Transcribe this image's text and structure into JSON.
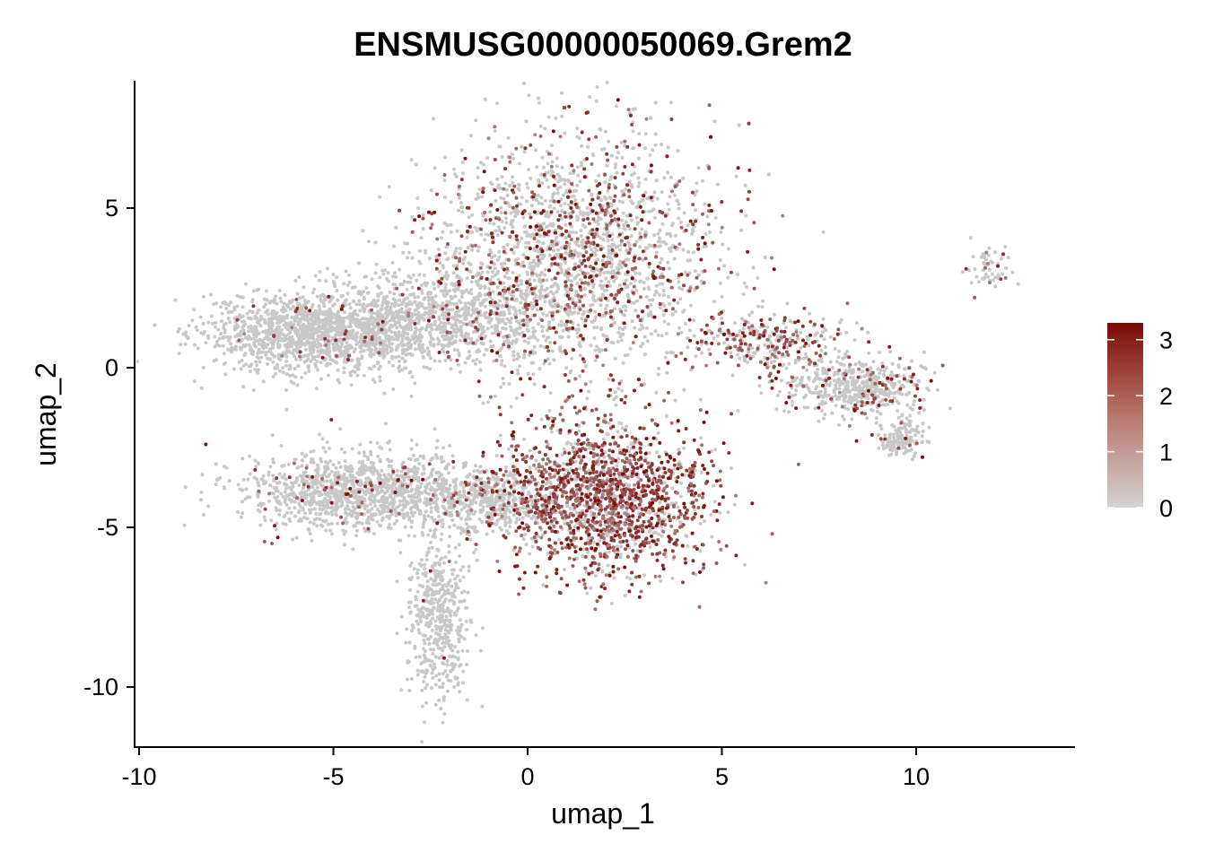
{
  "chart_data": {
    "type": "scatter",
    "title": "ENSMUSG00000050069.Grem2",
    "xlabel": "umap_1",
    "ylabel": "umap_2",
    "xlim": [
      -10,
      14
    ],
    "ylim": [
      -12,
      9
    ],
    "x_ticks": [
      -10,
      -5,
      0,
      5,
      10
    ],
    "x_tick_labels": [
      "-10",
      "-5",
      "0",
      "5",
      "10"
    ],
    "y_ticks": [
      -10,
      -5,
      0,
      5
    ],
    "y_tick_labels": [
      "-10",
      "-5",
      "0",
      "5"
    ],
    "grid": false,
    "legend": {
      "type": "colorbar",
      "placement": "right",
      "min": 0,
      "max": 3.3,
      "ticks": [
        0,
        1,
        2,
        3
      ],
      "tick_labels": [
        "0",
        "1",
        "2",
        "3"
      ],
      "low_color": "#d3d3d3",
      "high_color": "#7a0a05"
    },
    "point_color_low": "#c8c8c8",
    "point_color_high": "#7a0a05",
    "clusters": [
      {
        "cx": -5.4,
        "cy": 1.1,
        "sx": 1.4,
        "sy": 0.6,
        "n": 1500,
        "expr_frac": 0.02
      },
      {
        "cx": -2.0,
        "cy": 1.6,
        "sx": 1.6,
        "sy": 0.8,
        "n": 900,
        "expr_frac": 0.03
      },
      {
        "cx": 1.2,
        "cy": 3.6,
        "sx": 1.8,
        "sy": 1.9,
        "n": 2300,
        "expr_frac": 0.28
      },
      {
        "cx": 6.3,
        "cy": 0.8,
        "sx": 1.0,
        "sy": 0.5,
        "n": 300,
        "expr_frac": 0.45
      },
      {
        "cx": 8.4,
        "cy": -0.6,
        "sx": 0.9,
        "sy": 0.5,
        "n": 500,
        "expr_frac": 0.12
      },
      {
        "cx": 9.6,
        "cy": -2.2,
        "sx": 0.3,
        "sy": 0.3,
        "n": 150,
        "expr_frac": 0.05
      },
      {
        "cx": -4.2,
        "cy": -3.9,
        "sx": 1.5,
        "sy": 0.6,
        "n": 1300,
        "expr_frac": 0.05
      },
      {
        "cx": -1.0,
        "cy": -4.2,
        "sx": 0.8,
        "sy": 0.5,
        "n": 400,
        "expr_frac": 0.1
      },
      {
        "cx": 2.0,
        "cy": -4.0,
        "sx": 1.3,
        "sy": 1.2,
        "n": 1700,
        "expr_frac": 0.7
      },
      {
        "cx": -2.3,
        "cy": -7.8,
        "sx": 0.4,
        "sy": 1.3,
        "n": 500,
        "expr_frac": 0.02
      },
      {
        "cx": 11.9,
        "cy": 3.0,
        "sx": 0.25,
        "sy": 0.3,
        "n": 60,
        "expr_frac": 0.1
      }
    ]
  }
}
